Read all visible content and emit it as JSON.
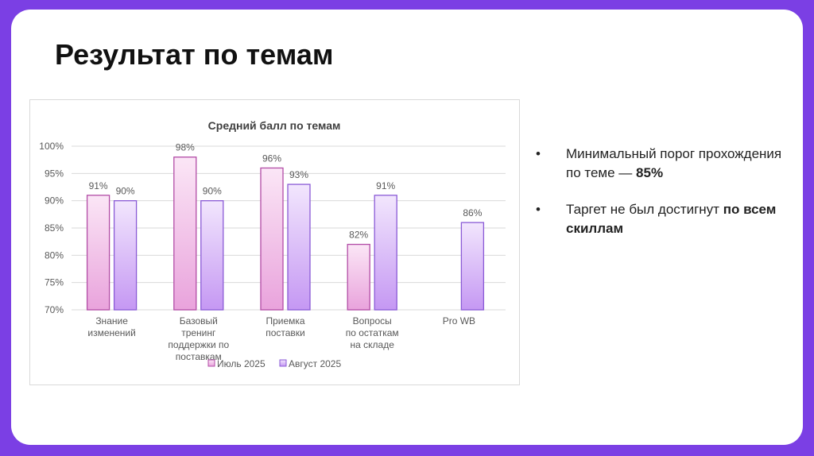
{
  "slide": {
    "title": "Результат по темам",
    "bullets": [
      {
        "marker": "•",
        "text": "Минимальный порог прохождения по теме — ",
        "bold": "85%"
      },
      {
        "marker": "•",
        "text": "Таргет не был достигнут ",
        "bold": "по всем скиллам"
      }
    ]
  },
  "colors": {
    "background": "#7b3fe4",
    "series1_fill_top": "#fbe6f6",
    "series1_fill_bottom": "#e9a3dc",
    "series1_stroke": "#b24ca6",
    "series2_fill_top": "#f2e6fd",
    "series2_fill_bottom": "#c598f3",
    "series2_stroke": "#8a5ad6"
  },
  "chart_data": {
    "type": "bar",
    "title": "Средний балл по темам",
    "xlabel": "",
    "ylabel": "",
    "ylim": [
      70,
      100
    ],
    "yticks": [
      70,
      75,
      80,
      85,
      90,
      95,
      100
    ],
    "ytick_labels": [
      "70%",
      "75%",
      "80%",
      "85%",
      "90%",
      "95%",
      "100%"
    ],
    "grid": true,
    "legend_position": "bottom",
    "categories": [
      [
        "Знание",
        "изменений"
      ],
      [
        "Базовый",
        "тренинг",
        "поддержки по",
        "поставкам"
      ],
      [
        "Приемка",
        "поставки"
      ],
      [
        "Вопросы",
        "по остаткам",
        "на складе"
      ],
      [
        "Pro WB"
      ]
    ],
    "series": [
      {
        "name": "Июль 2025",
        "values": [
          91,
          98,
          96,
          82,
          null
        ],
        "labels": [
          "91%",
          "98%",
          "96%",
          "82%",
          ""
        ]
      },
      {
        "name": "Август 2025",
        "values": [
          90,
          90,
          93,
          91,
          86
        ],
        "labels": [
          "90%",
          "90%",
          "93%",
          "91%",
          "86%"
        ]
      }
    ]
  }
}
